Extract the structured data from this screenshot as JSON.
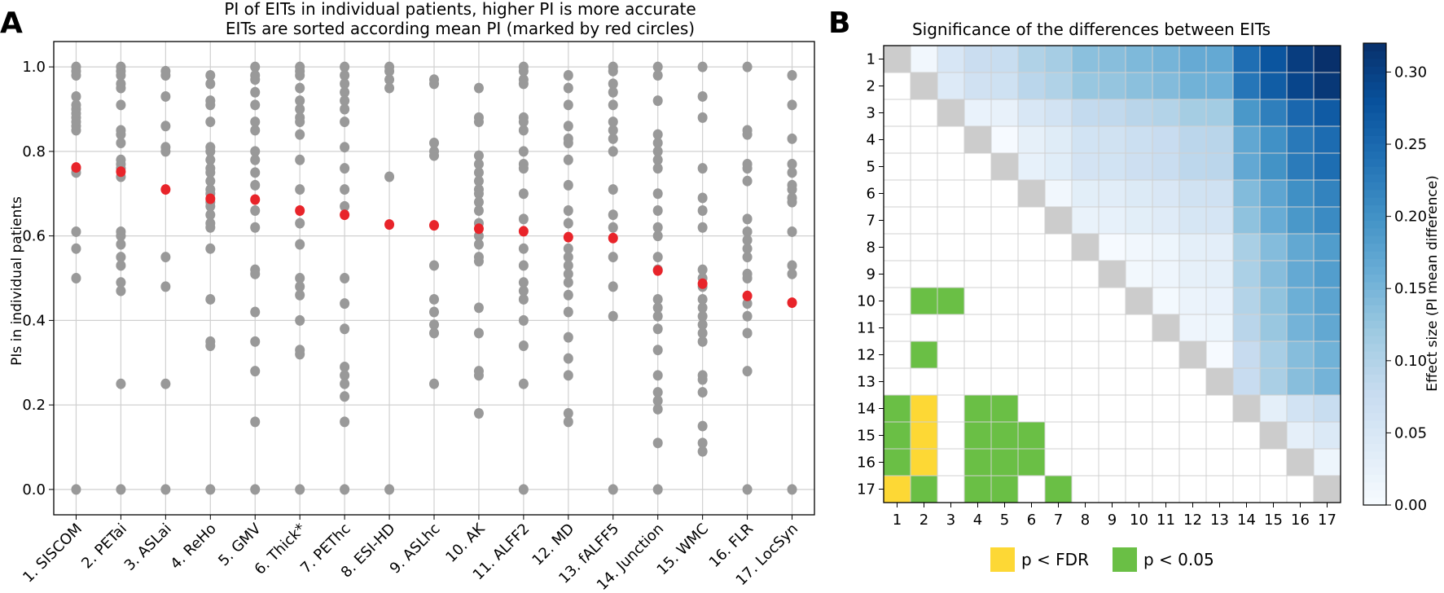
{
  "chart_data": [
    {
      "panel_label": "A",
      "type": "scatter",
      "title_line1": "PI of EITs in individual patients, higher PI is more accurate",
      "title_line2": "EITs are sorted according mean PI (marked by red circles)",
      "ylabel": "PIs in individual patients",
      "ylim": [
        -0.06,
        1.06
      ],
      "yticks": [
        0.0,
        0.2,
        0.4,
        0.6,
        0.8,
        1.0
      ],
      "ytick_labels": [
        "0.0",
        "0.2",
        "0.4",
        "0.6",
        "0.8",
        "1.0"
      ],
      "grid": true,
      "categories": [
        "1. SISCOM",
        "2. PETai",
        "3. ASLai",
        "4. ReHo",
        "5. GMV",
        "6. Thick*",
        "7. PEThc",
        "8. ESI-HD",
        "9. ASLhc",
        "10. AK",
        "11. ALFF2",
        "12. MD",
        "13. fALFF5",
        "14. Junction",
        "15. WMC",
        "16. FLR",
        "17. LocSyn"
      ],
      "means": [
        0.762,
        0.752,
        0.71,
        0.688,
        0.686,
        0.66,
        0.65,
        0.627,
        0.625,
        0.617,
        0.611,
        0.597,
        0.595,
        0.518,
        0.487,
        0.458,
        0.442
      ],
      "points": [
        [
          1.0,
          0.99,
          0.98,
          0.93,
          0.91,
          0.9,
          0.89,
          0.88,
          0.87,
          0.86,
          0.85,
          0.76,
          0.75,
          0.61,
          0.57,
          0.5,
          0.0
        ],
        [
          1.0,
          0.99,
          0.98,
          0.96,
          0.95,
          0.91,
          0.85,
          0.84,
          0.82,
          0.78,
          0.77,
          0.76,
          0.74,
          0.61,
          0.6,
          0.58,
          0.55,
          0.53,
          0.49,
          0.47,
          0.25,
          0.0
        ],
        [
          0.99,
          0.98,
          0.93,
          0.86,
          0.81,
          0.8,
          0.55,
          0.48,
          0.25,
          0.0
        ],
        [
          0.98,
          0.96,
          0.92,
          0.91,
          0.87,
          0.81,
          0.8,
          0.78,
          0.76,
          0.75,
          0.73,
          0.71,
          0.7,
          0.68,
          0.67,
          0.65,
          0.63,
          0.62,
          0.57,
          0.45,
          0.35,
          0.34,
          0.0
        ],
        [
          1.0,
          0.98,
          0.97,
          0.94,
          0.91,
          0.87,
          0.85,
          0.8,
          0.78,
          0.75,
          0.72,
          0.66,
          0.62,
          0.52,
          0.51,
          0.42,
          0.35,
          0.28,
          0.16,
          0.0
        ],
        [
          1.0,
          0.99,
          0.98,
          0.95,
          0.92,
          0.9,
          0.88,
          0.87,
          0.84,
          0.78,
          0.71,
          0.63,
          0.58,
          0.5,
          0.48,
          0.46,
          0.4,
          0.33,
          0.32,
          0.0
        ],
        [
          1.0,
          0.98,
          0.96,
          0.94,
          0.92,
          0.9,
          0.87,
          0.81,
          0.76,
          0.71,
          0.67,
          0.5,
          0.44,
          0.38,
          0.29,
          0.27,
          0.25,
          0.22,
          0.16,
          0.0
        ],
        [
          1.0,
          0.99,
          0.97,
          0.95,
          0.74,
          0.0
        ],
        [
          0.97,
          0.96,
          0.82,
          0.8,
          0.79,
          0.53,
          0.45,
          0.42,
          0.39,
          0.37,
          0.25
        ],
        [
          0.95,
          0.88,
          0.87,
          0.79,
          0.77,
          0.75,
          0.73,
          0.71,
          0.7,
          0.68,
          0.66,
          0.63,
          0.6,
          0.58,
          0.55,
          0.54,
          0.43,
          0.37,
          0.28,
          0.27,
          0.18
        ],
        [
          1.0,
          0.99,
          0.97,
          0.96,
          0.88,
          0.87,
          0.85,
          0.8,
          0.77,
          0.76,
          0.7,
          0.64,
          0.57,
          0.53,
          0.49,
          0.47,
          0.45,
          0.4,
          0.34,
          0.25,
          0.0
        ],
        [
          0.98,
          0.95,
          0.91,
          0.86,
          0.83,
          0.82,
          0.78,
          0.72,
          0.66,
          0.63,
          0.57,
          0.55,
          0.53,
          0.51,
          0.49,
          0.46,
          0.42,
          0.36,
          0.31,
          0.27,
          0.18,
          0.16
        ],
        [
          1.0,
          0.99,
          0.96,
          0.94,
          0.91,
          0.87,
          0.85,
          0.83,
          0.8,
          0.71,
          0.65,
          0.62,
          0.55,
          0.48,
          0.41,
          0.0
        ],
        [
          1.0,
          0.98,
          0.92,
          0.84,
          0.82,
          0.8,
          0.78,
          0.76,
          0.7,
          0.66,
          0.62,
          0.6,
          0.55,
          0.52,
          0.45,
          0.43,
          0.41,
          0.38,
          0.33,
          0.27,
          0.23,
          0.21,
          0.19,
          0.11,
          0.0
        ],
        [
          1.0,
          0.93,
          0.88,
          0.76,
          0.69,
          0.66,
          0.62,
          0.52,
          0.5,
          0.48,
          0.45,
          0.43,
          0.41,
          0.39,
          0.37,
          0.35,
          0.27,
          0.26,
          0.23,
          0.15,
          0.11,
          0.09
        ],
        [
          1.0,
          0.85,
          0.84,
          0.77,
          0.76,
          0.73,
          0.64,
          0.61,
          0.59,
          0.57,
          0.55,
          0.51,
          0.5,
          0.44,
          0.41,
          0.37,
          0.28,
          0.0
        ],
        [
          0.98,
          0.91,
          0.83,
          0.77,
          0.75,
          0.72,
          0.71,
          0.69,
          0.68,
          0.61,
          0.53,
          0.51,
          0.0
        ]
      ],
      "point_color": "#999999",
      "mean_color": "#e8242a"
    },
    {
      "panel_label": "B",
      "type": "heatmap",
      "title": "Significance of the differences between EITs",
      "labels": [
        "1",
        "2",
        "3",
        "4",
        "5",
        "6",
        "7",
        "8",
        "9",
        "10",
        "11",
        "12",
        "13",
        "14",
        "15",
        "16",
        "17"
      ],
      "upper_triangle": "effect size = mean PI(column) - mean PI(row), derived from panel A means",
      "colorbar_label": "Effect size (PI mean difference)",
      "colorbar_range": [
        0.0,
        0.32
      ],
      "colorbar_ticks": [
        0.0,
        0.05,
        0.1,
        0.15,
        0.2,
        0.25,
        0.3
      ],
      "colorbar_tick_labels": [
        "0.00",
        "0.05",
        "0.10",
        "0.15",
        "0.20",
        "0.25",
        "0.30"
      ],
      "diagonal_color": "#cccccc",
      "significant_fdr": [
        [
          14,
          2
        ],
        [
          15,
          2
        ],
        [
          16,
          2
        ],
        [
          17,
          1
        ]
      ],
      "significant_p05": [
        [
          10,
          2
        ],
        [
          10,
          3
        ],
        [
          12,
          2
        ],
        [
          14,
          1
        ],
        [
          14,
          4
        ],
        [
          14,
          5
        ],
        [
          15,
          1
        ],
        [
          15,
          4
        ],
        [
          15,
          5
        ],
        [
          15,
          6
        ],
        [
          16,
          1
        ],
        [
          16,
          4
        ],
        [
          16,
          5
        ],
        [
          16,
          6
        ],
        [
          17,
          2
        ],
        [
          17,
          4
        ],
        [
          17,
          5
        ],
        [
          17,
          7
        ]
      ],
      "legend": [
        {
          "label": "p < FDR",
          "color": "#fdd835"
        },
        {
          "label": "p < 0.05",
          "color": "#6abf45"
        }
      ]
    }
  ]
}
